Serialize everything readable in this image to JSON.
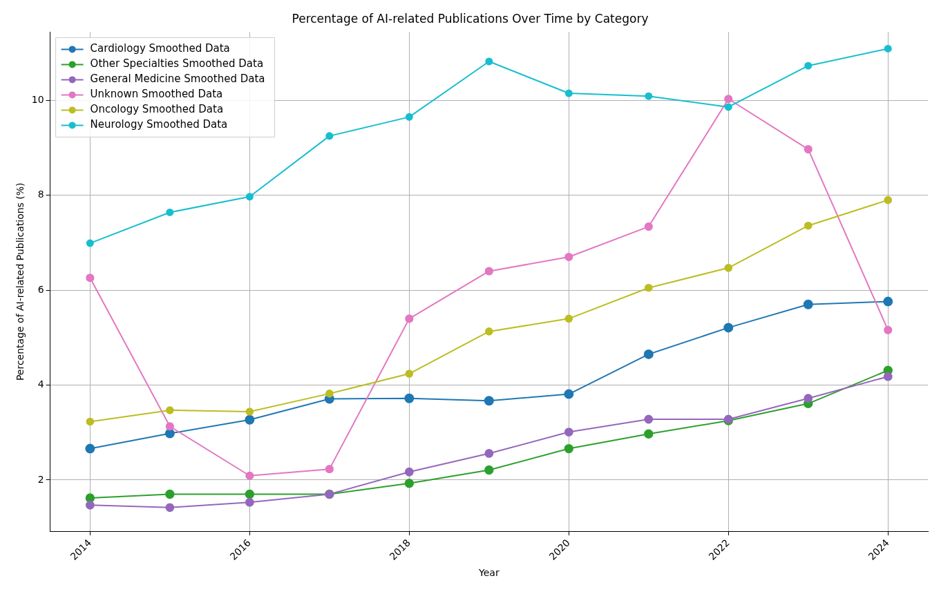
{
  "chart_data": {
    "type": "line",
    "title": "Percentage of AI-related Publications Over Time by Category",
    "xlabel": "Year",
    "ylabel": "Percentage of AI-related Publications (%)",
    "x": [
      2014,
      2015,
      2016,
      2017,
      2018,
      2019,
      2020,
      2021,
      2022,
      2023,
      2024
    ],
    "series": [
      {
        "name": "Cardiology Smoothed Data",
        "color": "#1f77b4",
        "values": [
          2.66,
          2.98,
          3.27,
          3.71,
          3.72,
          3.67,
          3.81,
          4.65,
          5.21,
          5.7,
          5.76
        ]
      },
      {
        "name": "Other Specialties Smoothed Data",
        "color": "#2ca02c",
        "values": [
          1.62,
          1.7,
          1.7,
          1.7,
          1.93,
          2.21,
          2.66,
          2.97,
          3.25,
          3.61,
          4.31
        ]
      },
      {
        "name": "General Medicine Smoothed Data",
        "color": "#9467bd",
        "values": [
          1.47,
          1.42,
          1.53,
          1.7,
          2.17,
          2.56,
          3.01,
          3.28,
          3.28,
          3.72,
          4.18
        ]
      },
      {
        "name": "Unknown Smoothed Data",
        "color": "#e377c2",
        "values": [
          6.26,
          3.13,
          2.09,
          2.23,
          5.4,
          6.4,
          6.7,
          7.34,
          10.03,
          8.97,
          5.16
        ]
      },
      {
        "name": "Oncology Smoothed Data",
        "color": "#bcbd22",
        "values": [
          3.23,
          3.47,
          3.44,
          3.82,
          4.24,
          5.13,
          5.4,
          6.05,
          6.47,
          7.36,
          7.9
        ]
      },
      {
        "name": "Neurology Smoothed Data",
        "color": "#17becf",
        "values": [
          6.99,
          7.64,
          7.97,
          9.25,
          9.65,
          10.82,
          10.15,
          10.09,
          9.86,
          10.73,
          11.09
        ]
      }
    ],
    "xlim": [
      2013.5,
      2024.5
    ],
    "ylim": [
      0.92,
      11.44
    ],
    "xticks": [
      2014,
      2016,
      2018,
      2020,
      2022,
      2024
    ],
    "yticks": [
      2,
      4,
      6,
      8,
      10
    ],
    "grid": true,
    "legend": "top left",
    "marker": "circle"
  }
}
